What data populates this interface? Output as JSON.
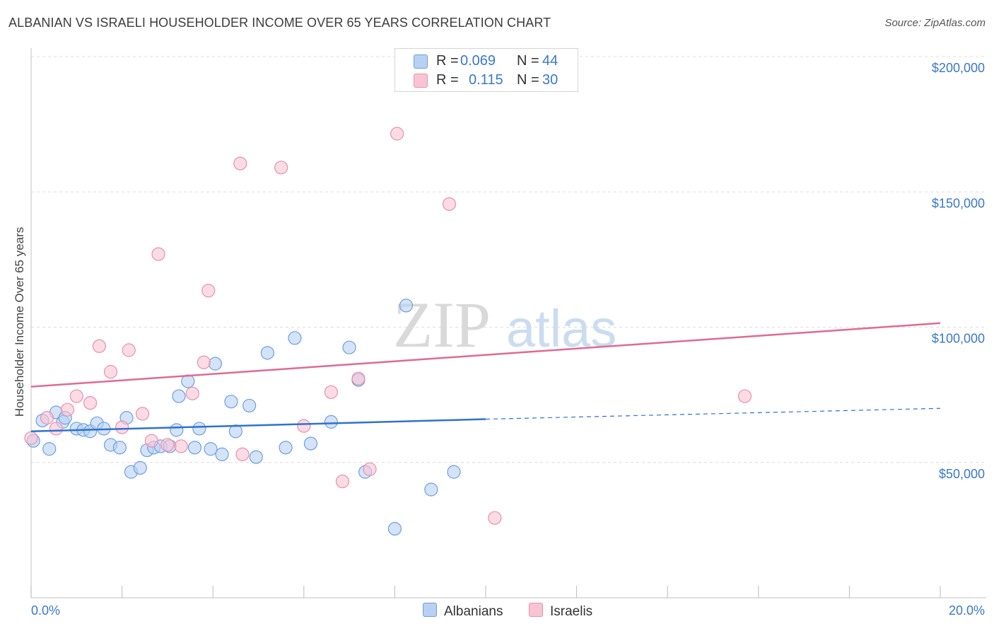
{
  "chart_data": {
    "type": "scatter",
    "title": "ALBANIAN VS ISRAELI HOUSEHOLDER INCOME OVER 65 YEARS CORRELATION CHART",
    "source": "Source: ZipAtlas.com",
    "ylabel": "Householder Income Over 65 years",
    "xlabel": "",
    "xlim": [
      0,
      20
    ],
    "ylim": [
      0,
      200000
    ],
    "x_tick_labels": [
      "0.0%",
      "20.0%"
    ],
    "y_tick_labels": [
      "$50,000",
      "$100,000",
      "$150,000",
      "$200,000"
    ],
    "y_ticks": [
      50000,
      100000,
      150000,
      200000
    ],
    "watermark": {
      "part1": "ZIP",
      "part2": "atlas"
    },
    "colors": {
      "albanian_fill": "#b8d1f3",
      "albanian_stroke": "#6c9fe0",
      "albanian_line": "#2f72cf",
      "israeli_fill": "#f8c4d4",
      "israeli_stroke": "#e98fae",
      "israeli_line": "#e06a93",
      "tick_label": "#3a78c9",
      "grid": "#dcdcdc"
    },
    "legend": {
      "r_label": "R =",
      "n_label": "N =",
      "entries": [
        {
          "key": "albanian",
          "r": "0.069",
          "n": "44"
        },
        {
          "key": "israeli",
          "r": "0.115",
          "n": "30"
        }
      ]
    },
    "series": [
      {
        "name": "Albanians",
        "key": "albanian",
        "trend": {
          "x0": 0,
          "y0": 61500,
          "x1": 10,
          "y1": 66000,
          "dash_to_x": 20,
          "dash_to_y": 70000
        },
        "points": [
          [
            0.05,
            58000
          ],
          [
            0.25,
            65500
          ],
          [
            0.4,
            55000
          ],
          [
            0.55,
            68500
          ],
          [
            0.7,
            65000
          ],
          [
            0.75,
            66500
          ],
          [
            1.0,
            62500
          ],
          [
            1.15,
            62000
          ],
          [
            1.3,
            61500
          ],
          [
            1.45,
            64500
          ],
          [
            1.6,
            62500
          ],
          [
            1.75,
            56500
          ],
          [
            1.95,
            55500
          ],
          [
            2.1,
            66500
          ],
          [
            2.2,
            46500
          ],
          [
            2.4,
            48000
          ],
          [
            2.55,
            54500
          ],
          [
            2.7,
            55500
          ],
          [
            2.85,
            56000
          ],
          [
            3.05,
            56000
          ],
          [
            3.2,
            62000
          ],
          [
            3.25,
            74500
          ],
          [
            3.45,
            80000
          ],
          [
            3.6,
            55500
          ],
          [
            3.7,
            62500
          ],
          [
            3.95,
            55000
          ],
          [
            4.05,
            86500
          ],
          [
            4.2,
            53000
          ],
          [
            4.4,
            72500
          ],
          [
            4.5,
            61500
          ],
          [
            4.8,
            71000
          ],
          [
            4.95,
            52000
          ],
          [
            5.2,
            90500
          ],
          [
            5.6,
            55500
          ],
          [
            5.8,
            96000
          ],
          [
            6.15,
            57000
          ],
          [
            6.6,
            65000
          ],
          [
            7.0,
            92500
          ],
          [
            7.2,
            80500
          ],
          [
            7.35,
            46500
          ],
          [
            8.0,
            25500
          ],
          [
            8.25,
            108000
          ],
          [
            8.8,
            40000
          ],
          [
            9.3,
            46500
          ]
        ]
      },
      {
        "name": "Israelis",
        "key": "israeli",
        "trend": {
          "x0": 0,
          "y0": 78000,
          "x1": 20,
          "y1": 101500
        },
        "points": [
          [
            0.0,
            59000
          ],
          [
            0.35,
            66500
          ],
          [
            0.55,
            62500
          ],
          [
            0.8,
            69500
          ],
          [
            1.0,
            74500
          ],
          [
            1.3,
            72000
          ],
          [
            1.5,
            93000
          ],
          [
            1.75,
            83500
          ],
          [
            2.0,
            63000
          ],
          [
            2.15,
            91500
          ],
          [
            2.45,
            68000
          ],
          [
            2.65,
            58000
          ],
          [
            2.8,
            127000
          ],
          [
            3.0,
            56500
          ],
          [
            3.3,
            56000
          ],
          [
            3.55,
            75500
          ],
          [
            3.8,
            87000
          ],
          [
            3.9,
            113500
          ],
          [
            4.6,
            160500
          ],
          [
            4.65,
            53000
          ],
          [
            5.5,
            159000
          ],
          [
            6.0,
            63500
          ],
          [
            6.6,
            76000
          ],
          [
            6.85,
            43000
          ],
          [
            7.2,
            81000
          ],
          [
            7.45,
            47500
          ],
          [
            8.05,
            171500
          ],
          [
            9.2,
            145500
          ],
          [
            10.2,
            29500
          ],
          [
            15.7,
            74500
          ]
        ]
      }
    ],
    "bottom_legend": [
      "Albanians",
      "Israelis"
    ]
  }
}
